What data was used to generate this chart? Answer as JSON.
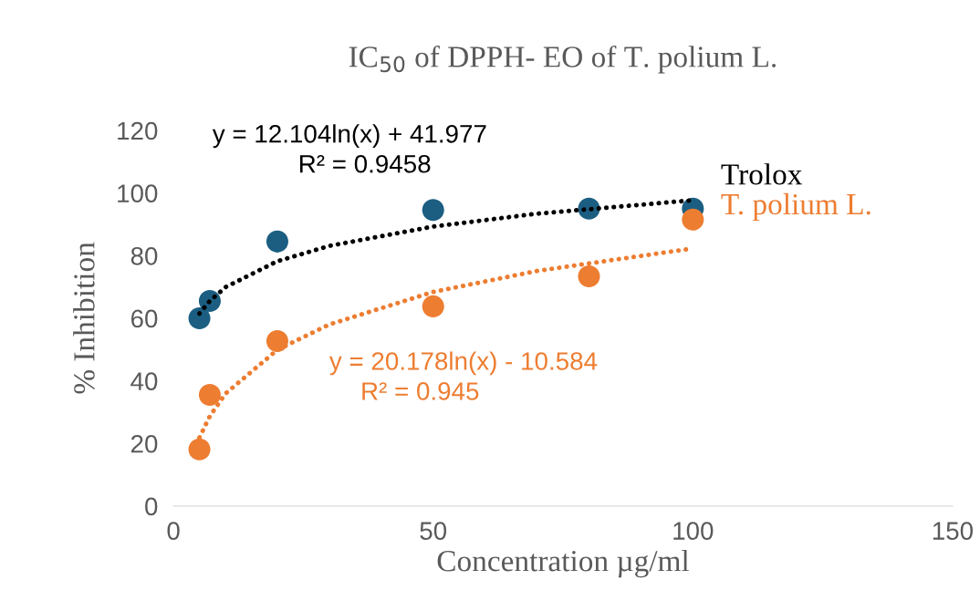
{
  "chart_data": {
    "type": "scatter",
    "title": "IC$_{50}$ of DPPH- EO of T. polium L.",
    "xlabel": "Concentration µg/ml",
    "ylabel": "% Inhibition",
    "xlim": [
      0,
      150
    ],
    "xticks": [
      0,
      50,
      100,
      150
    ],
    "ylim": [
      0,
      120
    ],
    "yticks": [
      0,
      20,
      40,
      60,
      80,
      100,
      120
    ],
    "grid": false,
    "legend": false,
    "marker": "circle",
    "series": [
      {
        "name": "Trolox",
        "color": "#1b5e82",
        "x": [
          5,
          7,
          20,
          50,
          80,
          100
        ],
        "values": [
          60.0,
          65.5,
          84.5,
          94.6,
          95.0,
          95.0
        ]
      },
      {
        "name": "T. polium L.",
        "color": "#ed7d31",
        "x": [
          5,
          7,
          20,
          50,
          80,
          100
        ],
        "values": [
          18.1,
          35.5,
          52.7,
          63.8,
          73.4,
          91.5
        ]
      },
      {
        "type": "line",
        "color": "#000000",
        "line_style": "dotted",
        "marker": "none",
        "x": [
          5,
          7,
          10,
          20,
          30,
          50,
          70,
          100
        ],
        "values": [
          61.5,
          65.5,
          69.9,
          78.2,
          83.1,
          89.3,
          93.4,
          97.7
        ]
      },
      {
        "type": "line",
        "color": "#ed7d31",
        "line_style": "dotted",
        "marker": "none",
        "x": [
          5,
          7,
          10,
          20,
          30,
          50,
          70,
          100
        ],
        "values": [
          21.9,
          28.7,
          35.9,
          49.9,
          58.0,
          68.4,
          75.1,
          82.3
        ]
      }
    ],
    "annotations": [
      "y = 12.104ln(x) + 41.977",
      "R² = 0.9458",
      "y = 20.178ln(x) - 10.584",
      "R² = 0.945"
    ]
  }
}
